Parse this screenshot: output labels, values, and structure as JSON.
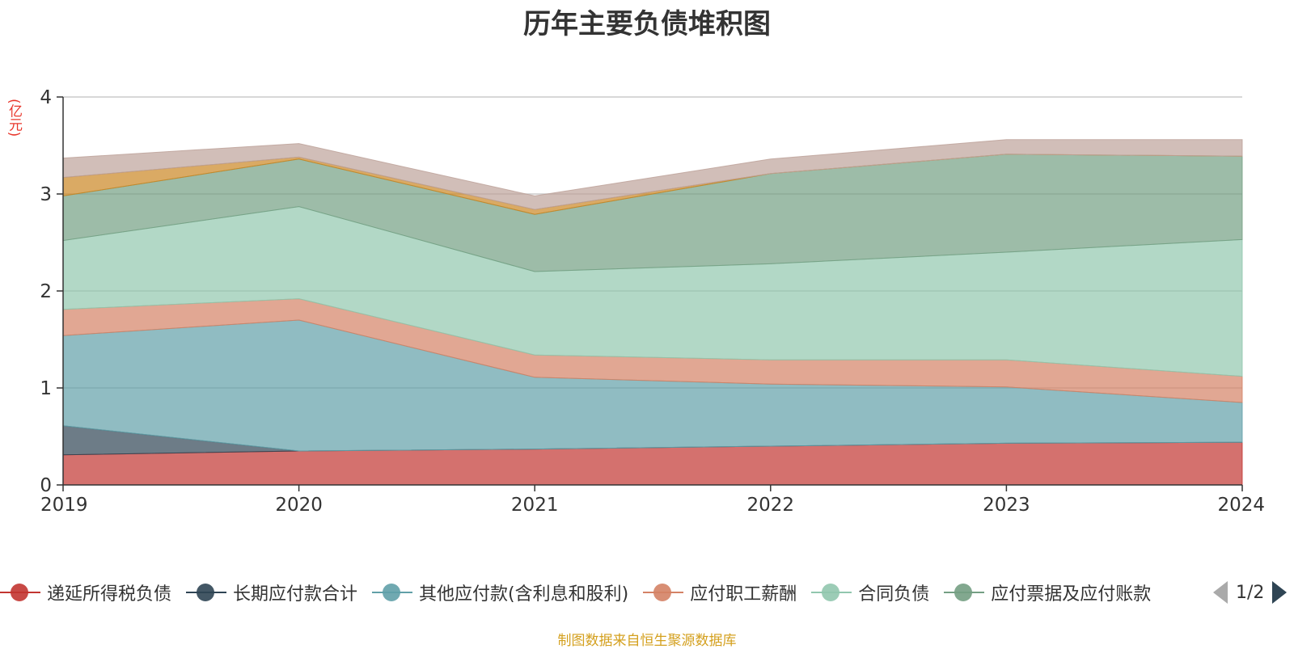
{
  "chart_data": {
    "type": "area",
    "stacked": true,
    "title": "历年主要负债堆积图",
    "ylabel": "(亿元)",
    "x": [
      "2019",
      "2020",
      "2021",
      "2022",
      "2023",
      "2024"
    ],
    "ylim": [
      0,
      4
    ],
    "yticks": [
      "0",
      "1",
      "2",
      "3",
      "4"
    ],
    "grid": true,
    "legend_position": "bottom",
    "series": [
      {
        "name": "递延所得税负债",
        "color": "#c23531",
        "values": [
          0.31,
          0.35,
          0.37,
          0.4,
          0.43,
          0.44
        ]
      },
      {
        "name": "长期应付款合计",
        "color": "#2f4554",
        "values": [
          0.3,
          0.0,
          0.0,
          0.0,
          0.0,
          0.0
        ]
      },
      {
        "name": "其他应付款(含利息和股利)",
        "color": "#61a0a8",
        "values": [
          0.93,
          1.35,
          0.74,
          0.64,
          0.58,
          0.41
        ]
      },
      {
        "name": "应付职工薪酬",
        "color": "#d48265",
        "values": [
          0.27,
          0.22,
          0.23,
          0.25,
          0.28,
          0.27
        ]
      },
      {
        "name": "合同负债",
        "color": "#91c7ae",
        "values": [
          0.71,
          0.95,
          0.86,
          0.99,
          1.11,
          1.41
        ]
      },
      {
        "name": "应付票据及应付账款",
        "color": "#749f83",
        "values": [
          0.46,
          0.49,
          0.59,
          0.93,
          1.01,
          0.86
        ]
      },
      {
        "name": "",
        "color": "#ca8622",
        "values": [
          0.19,
          0.02,
          0.05,
          0.0,
          0.0,
          0.0
        ]
      },
      {
        "name": "",
        "color": "#bda29a",
        "values": [
          0.2,
          0.14,
          0.14,
          0.15,
          0.15,
          0.17
        ]
      }
    ]
  },
  "legend": {
    "items": [
      {
        "label": "递延所得税负债",
        "color": "#c23531"
      },
      {
        "label": "长期应付款合计",
        "color": "#2f4554"
      },
      {
        "label": "其他应付款(含利息和股利)",
        "color": "#61a0a8"
      },
      {
        "label": "应付职工薪酬",
        "color": "#d48265"
      },
      {
        "label": "合同负债",
        "color": "#91c7ae"
      },
      {
        "label": "应付票据及应付账款",
        "color": "#749f83"
      }
    ],
    "page_indicator": "1/2"
  },
  "footer": {
    "source": "制图数据来自恒生聚源数据库"
  }
}
